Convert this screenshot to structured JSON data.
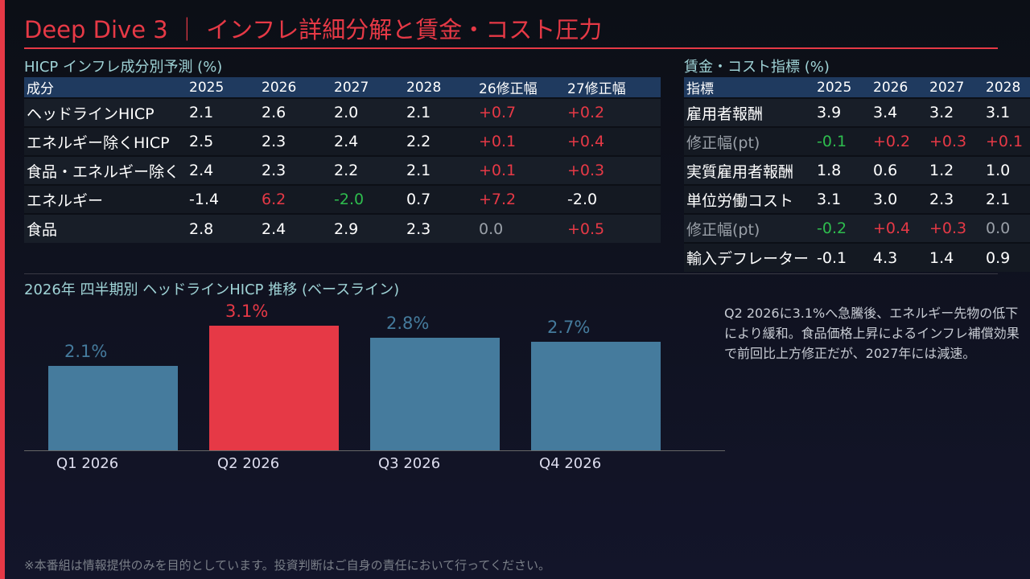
{
  "title": "Deep Dive 3 ｜ インフレ詳細分解と賃金・コスト圧力",
  "hicp": {
    "title": "HICP インフレ成分別予測 (%)",
    "headers": [
      "成分",
      "2025",
      "2026",
      "2027",
      "2028",
      "26修正幅",
      "27修正幅"
    ],
    "rows": [
      [
        "ヘッドラインHICP",
        "2.1",
        "2.6",
        "2.0",
        "2.1",
        "+0.7",
        "+0.2"
      ],
      [
        "エネルギー除くHICP",
        "2.5",
        "2.3",
        "2.4",
        "2.2",
        "+0.1",
        "+0.4"
      ],
      [
        "食品・エネルギー除く",
        "2.4",
        "2.3",
        "2.2",
        "2.1",
        "+0.1",
        "+0.3"
      ],
      [
        "エネルギー",
        "-1.4",
        "6.2",
        "-2.0",
        "0.7",
        "+7.2",
        "-2.0"
      ],
      [
        "食品",
        "2.8",
        "2.4",
        "2.9",
        "2.3",
        "0.0",
        "+0.5"
      ]
    ],
    "colors": [
      [
        "",
        "",
        "",
        "",
        "",
        "r",
        "r"
      ],
      [
        "",
        "",
        "",
        "",
        "",
        "r",
        "r"
      ],
      [
        "",
        "",
        "",
        "",
        "",
        "r",
        "r"
      ],
      [
        "",
        "",
        "r",
        "g",
        "",
        "r",
        ""
      ],
      [
        "",
        "",
        "",
        "",
        "",
        "z",
        "r"
      ]
    ]
  },
  "wage": {
    "title": "賃金・コスト指標 (%)",
    "headers": [
      "指標",
      "2025",
      "2026",
      "2027",
      "2028"
    ],
    "rows": [
      [
        "雇用者報酬",
        "3.9",
        "3.4",
        "3.2",
        "3.1"
      ],
      [
        "修正幅(pt)",
        "-0.1",
        "+0.2",
        "+0.3",
        "+0.1"
      ],
      [
        "実質雇用者報酬",
        "1.8",
        "0.6",
        "1.2",
        "1.0"
      ],
      [
        "単位労働コスト",
        "3.1",
        "3.0",
        "2.3",
        "2.1"
      ],
      [
        "修正幅(pt)",
        "-0.2",
        "+0.4",
        "+0.3",
        "0.0"
      ],
      [
        "輸入デフレーター",
        "-0.1",
        "4.3",
        "1.4",
        "0.9"
      ]
    ],
    "colors": [
      [
        "",
        "",
        "",
        "",
        ""
      ],
      [
        "lbl",
        "g",
        "r",
        "r",
        "r"
      ],
      [
        "",
        "",
        "",
        "",
        ""
      ],
      [
        "",
        "",
        "",
        "",
        ""
      ],
      [
        "lbl",
        "g",
        "r",
        "r",
        "z"
      ],
      [
        "",
        "",
        "",
        "",
        ""
      ]
    ]
  },
  "chart_data": {
    "type": "bar",
    "title": "2026年 四半期別 ヘッドラインHICP 推移 (ベースライン)",
    "categories": [
      "Q1 2026",
      "Q2 2026",
      "Q3 2026",
      "Q4 2026"
    ],
    "values": [
      2.1,
      3.1,
      2.8,
      2.7
    ],
    "labels": [
      "2.1%",
      "3.1%",
      "2.8%",
      "2.7%"
    ],
    "highlight_index": 1,
    "colors": {
      "normal": "#457b9d",
      "highlight": "#e63946"
    },
    "ylim": [
      0,
      3.5
    ]
  },
  "note": "Q2 2026に3.1%へ急騰後、エネルギー先物の低下により緩和。食品価格上昇によるインフレ補償効果で前回比上方修正だが、2027年には減速。",
  "footer": "※本番組は情報提供のみを目的としています。投資判断はご自身の責任において行ってください。"
}
